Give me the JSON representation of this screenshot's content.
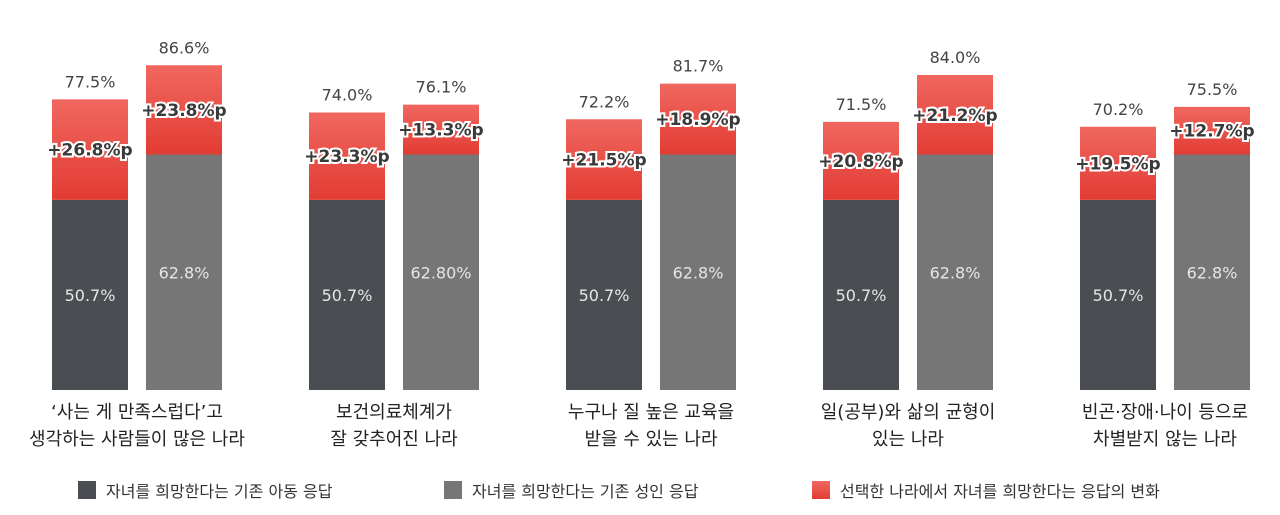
{
  "chart_data": {
    "type": "bar",
    "stacked": true,
    "grid": false,
    "ylim": [
      0,
      100
    ],
    "legend_position": "bottom",
    "colors": {
      "child": "#4a4d51",
      "adult": "#767676",
      "change": "#e8483f"
    },
    "groups": [
      {
        "category_lines": [
          "‘사는 게 만족스럽다’고",
          "생각하는 사람들이 많은 나라"
        ],
        "child": {
          "base": 50.7,
          "base_label": "50.7%",
          "total": 77.5,
          "total_label": "77.5%",
          "change_label": "+26.8%p"
        },
        "adult": {
          "base": 62.8,
          "base_label": "62.8%",
          "total": 86.6,
          "total_label": "86.6%",
          "change_label": "+23.8%p"
        }
      },
      {
        "category_lines": [
          "보건의료체계가",
          "잘 갖추어진 나라"
        ],
        "child": {
          "base": 50.7,
          "base_label": "50.7%",
          "total": 74.0,
          "total_label": "74.0%",
          "change_label": "+23.3%p"
        },
        "adult": {
          "base": 62.8,
          "base_label": "62.80%",
          "total": 76.1,
          "total_label": "76.1%",
          "change_label": "+13.3%p"
        }
      },
      {
        "category_lines": [
          "누구나 질 높은 교육을",
          "받을 수 있는 나라"
        ],
        "child": {
          "base": 50.7,
          "base_label": "50.7%",
          "total": 72.2,
          "total_label": "72.2%",
          "change_label": "+21.5%p"
        },
        "adult": {
          "base": 62.8,
          "base_label": "62.8%",
          "total": 81.7,
          "total_label": "81.7%",
          "change_label": "+18.9%p"
        }
      },
      {
        "category_lines": [
          "일(공부)와 삶의 균형이",
          "있는 나라"
        ],
        "child": {
          "base": 50.7,
          "base_label": "50.7%",
          "total": 71.5,
          "total_label": "71.5%",
          "change_label": "+20.8%p"
        },
        "adult": {
          "base": 62.8,
          "base_label": "62.8%",
          "total": 84.0,
          "total_label": "84.0%",
          "change_label": "+21.2%p"
        }
      },
      {
        "category_lines": [
          "빈곤·장애·나이 등으로",
          "차별받지 않는 나라"
        ],
        "child": {
          "base": 50.7,
          "base_label": "50.7%",
          "total": 70.2,
          "total_label": "70.2%",
          "change_label": "+19.5%p"
        },
        "adult": {
          "base": 62.8,
          "base_label": "62.8%",
          "total": 75.5,
          "total_label": "75.5%",
          "change_label": "+12.7%p"
        }
      }
    ],
    "legend": [
      "자녀를 희망한다는 기존 아동 응답",
      "자녀를 희망한다는 기존 성인 응답",
      "선택한 나라에서 자녀를 희망한다는 응답의 변화"
    ]
  }
}
